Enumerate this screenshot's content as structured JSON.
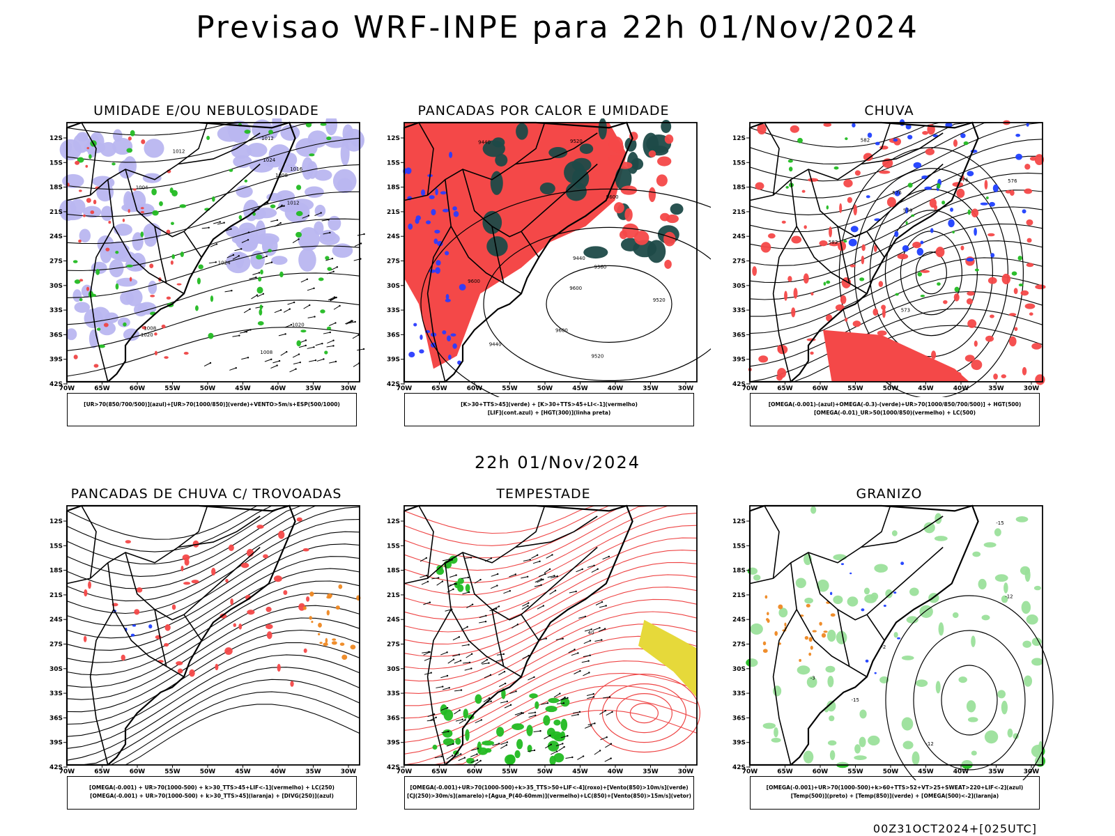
{
  "header": {
    "title": "Previsao WRF-INPE  para 22h 01/Nov/2024",
    "middle_title": "22h 01/Nov/2024",
    "footer": "00Z31OCT2024+[025UTC]"
  },
  "axes": {
    "lat_labels": [
      "12S",
      "15S",
      "18S",
      "21S",
      "24S",
      "27S",
      "30S",
      "33S",
      "36S",
      "39S",
      "42S"
    ],
    "lon_labels": [
      "70W",
      "65W",
      "60W",
      "55W",
      "50W",
      "45W",
      "40W",
      "35W",
      "30W"
    ]
  },
  "panels": [
    {
      "title": "UMIDADE E/OU NEBULOSIDADE",
      "legend_line1": "[UR>70(850/700/500)](azul)+[UR>70(1000/850)](verde)+VENTO>5m/s+ESP(500/1000)",
      "legend_line2": "",
      "contour_labels": [
        "1012",
        "1012",
        "1008",
        "1004",
        "1016",
        "1020",
        "1020",
        "1024",
        "1024",
        "1008",
        "1008",
        "1012"
      ]
    },
    {
      "title": "PANCADAS POR CALOR E UMIDADE",
      "legend_line1": "[K>30+TTS>45](verde) + [K>30+TTS>45+LI<-1](vermelho)",
      "legend_line2": "[LIF](cont.azul) + [HGT(300)](linha preta)",
      "contour_labels": [
        "9600",
        "9600",
        "9600",
        "9520",
        "9520",
        "9520",
        "9440",
        "9440",
        "9440",
        "9360",
        "9600"
      ]
    },
    {
      "title": "CHUVA",
      "legend_line1": "[OMEGA(-0.001)-(azul)+OMEGA(-0.3)-(verde)+UR>70(1000/850/700/500)] + HGT(500)",
      "legend_line2": "[OMEGA(-0.01)_UR>50(1000/850)(vermelho) + LC(500)",
      "contour_labels": [
        "582",
        "582",
        "579",
        "576",
        "573",
        "576",
        "576"
      ]
    },
    {
      "title": "PANCADAS DE CHUVA C/ TROVOADAS",
      "legend_line1": "[OMEGA(-0.001) + UR>70(1000-500) + k>30_TTS>45+LIF<-1](vermelho) + LC(250)",
      "legend_line2": "[OMEGA(-0.001) + UR>70(1000-500) + k>30_TTS>45](laranja) + [DIVG(250)](azul)",
      "contour_labels": []
    },
    {
      "title": "TEMPESTADE",
      "legend_line1": "[OMEGA(-0.001)+UR>70(1000-500)+k>35_TTS>50+LIF<-4](roxo)+[Vento(850)>10m/s](verde)",
      "legend_line2": "[CJ(250)>30m/s](amarelo)+[Agua_P(40-60mm)](vermelho)+LC(850)+[Vento(850)>15m/s](vetor)",
      "contour_labels": [
        "40"
      ]
    },
    {
      "title": "GRANIZO",
      "legend_line1": "[OMEGA(-0.001)+UR>70(1000-500)+k>60+TTS>52+VT>25+SWEAT>220+LIF<-2](azul)",
      "legend_line2": "[Temp(500)](preto) + [Temp(850)](verde) + [OMEGA(500)<-2](laranja)",
      "contour_labels": [
        "-3",
        "-12",
        "-15",
        "-15",
        "-12",
        "-2"
      ]
    }
  ]
}
